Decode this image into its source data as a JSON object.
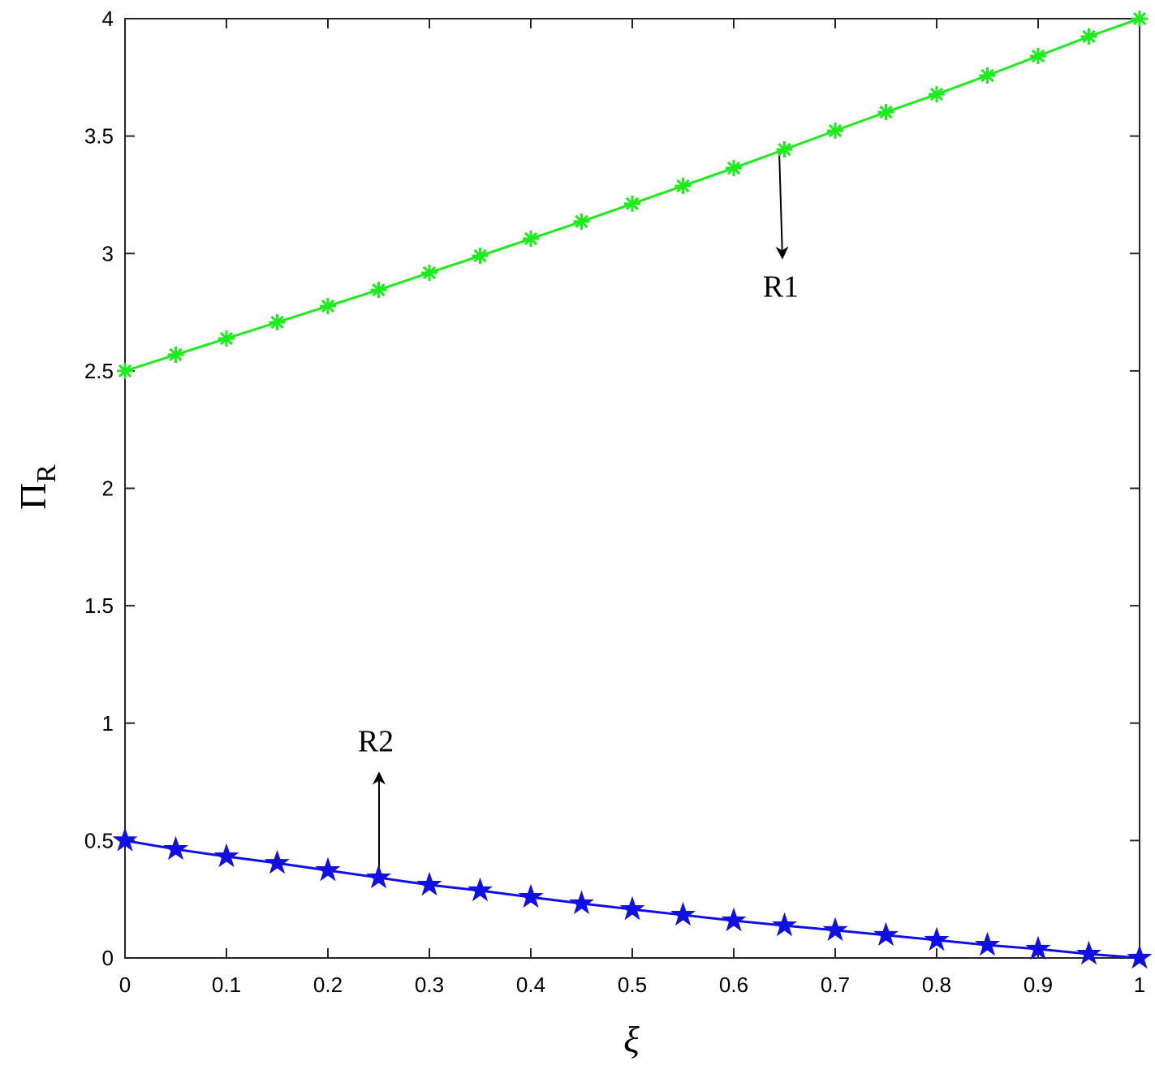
{
  "chart_data": {
    "type": "line",
    "xlabel": "ξ",
    "ylabel": {
      "text": "Π",
      "subscript": "R"
    },
    "x": [
      0,
      0.05,
      0.1,
      0.15,
      0.2,
      0.25,
      0.3,
      0.35,
      0.4,
      0.45,
      0.5,
      0.55,
      0.6,
      0.65,
      0.7,
      0.75,
      0.8,
      0.85,
      0.9,
      0.95,
      1
    ],
    "series": [
      {
        "color": "#1aee1a",
        "marker": "asterisk",
        "values": [
          2.5,
          2.569,
          2.638,
          2.707,
          2.776,
          2.845,
          2.918,
          2.99,
          3.063,
          3.136,
          3.212,
          3.288,
          3.364,
          3.443,
          3.523,
          3.602,
          3.678,
          3.758,
          3.841,
          3.924,
          4
        ]
      },
      {
        "color": "#1010e6",
        "marker": "pentagram",
        "values": [
          0.5,
          0.463,
          0.432,
          0.404,
          0.373,
          0.342,
          0.311,
          0.287,
          0.259,
          0.232,
          0.207,
          0.183,
          0.159,
          0.138,
          0.118,
          0.097,
          0.076,
          0.055,
          0.038,
          0.017,
          0
        ]
      }
    ],
    "annotations": [
      "R1",
      "R2"
    ],
    "xlim": [
      0,
      1
    ],
    "ylim": [
      0,
      4
    ],
    "xticks": [
      0,
      0.1,
      0.2,
      0.3,
      0.4,
      0.5,
      0.6,
      0.7,
      0.8,
      0.9,
      1
    ],
    "yticks": [
      0,
      0.5,
      1,
      1.5,
      2,
      2.5,
      3,
      3.5,
      4
    ],
    "grid": false
  }
}
